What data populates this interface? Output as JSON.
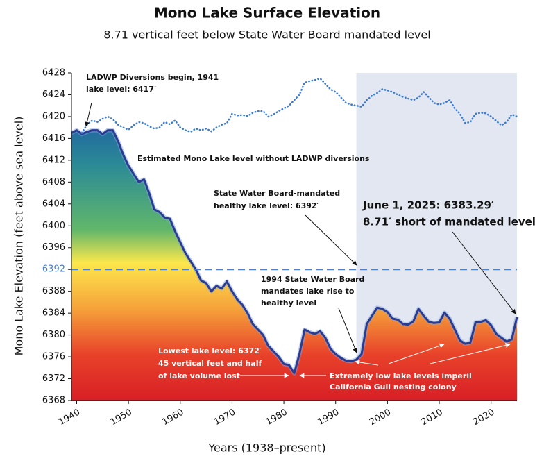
{
  "chart_data": {
    "type": "area",
    "title": "Mono Lake Surface Elevation",
    "subtitle": "8.71 vertical feet below State Water Board mandated level",
    "x_label": "Years (1938–present)",
    "y_label": "Mono Lake Elevation  (feet above sea level)",
    "x": [
      1939,
      1940,
      1941,
      1942,
      1943,
      1944,
      1945,
      1946,
      1947,
      1948,
      1949,
      1950,
      1951,
      1952,
      1953,
      1954,
      1955,
      1956,
      1957,
      1958,
      1959,
      1960,
      1961,
      1962,
      1963,
      1964,
      1965,
      1966,
      1967,
      1968,
      1969,
      1970,
      1971,
      1972,
      1973,
      1974,
      1975,
      1976,
      1977,
      1978,
      1979,
      1980,
      1981,
      1982,
      1983,
      1984,
      1985,
      1986,
      1987,
      1988,
      1989,
      1990,
      1991,
      1992,
      1993,
      1994,
      1995,
      1996,
      1997,
      1998,
      1999,
      2000,
      2001,
      2002,
      2003,
      2004,
      2005,
      2006,
      2007,
      2008,
      2009,
      2010,
      2011,
      2012,
      2013,
      2014,
      2015,
      2016,
      2017,
      2018,
      2019,
      2020,
      2021,
      2022,
      2023,
      2024,
      2025
    ],
    "series": [
      {
        "name": "Actual lake level",
        "color": "#2b3b8f",
        "style": "area",
        "values": [
          6417,
          6417.5,
          6416.8,
          6417.2,
          6417.5,
          6417.5,
          6416.8,
          6417.5,
          6417.5,
          6415.5,
          6413,
          6411,
          6409.5,
          6408,
          6408.5,
          6406,
          6403,
          6402.5,
          6401.5,
          6401.3,
          6399,
          6397,
          6395,
          6393.5,
          6392,
          6390,
          6389.5,
          6388,
          6389,
          6388.5,
          6389.8,
          6388,
          6386.5,
          6385.5,
          6384,
          6382,
          6381,
          6380,
          6378,
          6377,
          6376,
          6374.7,
          6374.5,
          6373,
          6376.5,
          6381,
          6380.5,
          6380.2,
          6380.7,
          6379.5,
          6377.5,
          6376.5,
          6375.8,
          6375.3,
          6375.2,
          6375.5,
          6376.5,
          6382,
          6383.5,
          6385,
          6384.8,
          6384.2,
          6383,
          6382.8,
          6382,
          6381.9,
          6382.5,
          6384.8,
          6383.5,
          6382.4,
          6382.2,
          6382.3,
          6384.1,
          6383,
          6381,
          6379,
          6378.4,
          6378.6,
          6382.3,
          6382.4,
          6382.7,
          6381.8,
          6380.2,
          6379.5,
          6378.8,
          6379.2,
          6383.29
        ]
      },
      {
        "name": "Estimated Mono Lake level without LADWP diversions",
        "color": "#3b7bd0",
        "style": "dotted",
        "values": [
          null,
          null,
          6417,
          6418.5,
          6419.3,
          6419,
          6419.6,
          6420,
          6419.5,
          6418.5,
          6418,
          6417.6,
          6418.4,
          6419,
          6418.8,
          6418.2,
          6417.8,
          6418,
          6419,
          6418.6,
          6419.3,
          6418,
          6417.5,
          6417.2,
          6417.8,
          6417.5,
          6417.8,
          6417.3,
          6418,
          6418.5,
          6418.8,
          6420.5,
          6420.2,
          6420.3,
          6420.1,
          6420.7,
          6421,
          6421,
          6420,
          6420.4,
          6421,
          6421.5,
          6422,
          6423,
          6424,
          6426.2,
          6426.5,
          6426.7,
          6427,
          6426,
          6425,
          6424.5,
          6423.5,
          6422.5,
          6422.2,
          6422,
          6421.8,
          6423,
          6423.8,
          6424.3,
          6425,
          6424.8,
          6424.5,
          6424,
          6423.6,
          6423.3,
          6423,
          6423.5,
          6424.5,
          6423.5,
          6422.5,
          6422.2,
          6422.5,
          6423,
          6421.5,
          6420.5,
          6418.8,
          6419,
          6420.5,
          6420.7,
          6420.6,
          6420,
          6419.2,
          6418.4,
          6419,
          6420.4,
          6420
        ]
      }
    ],
    "reference_line": {
      "value": 6392,
      "color": "#4a7fd0"
    },
    "shaded_region": {
      "from": 1994,
      "color": "#e2e7f2"
    },
    "xlim": [
      1939,
      2025
    ],
    "ylim": [
      6368,
      6428
    ],
    "xticks": [
      1940,
      1950,
      1960,
      1970,
      1980,
      1990,
      2000,
      2010,
      2020
    ],
    "yticks": [
      6368,
      6372,
      6376,
      6380,
      6384,
      6388,
      6392,
      6396,
      6400,
      6404,
      6408,
      6412,
      6416,
      6420,
      6424,
      6428
    ],
    "annotations": [
      {
        "lines": [
          "LADWP Diversions begin, 1941",
          "lake level: 6417′"
        ]
      },
      {
        "lines": [
          "Estimated Mono Lake level without LADWP diversions"
        ]
      },
      {
        "lines": [
          "State Water Board-mandated",
          "healthy lake level: 6392′"
        ]
      },
      {
        "lines": [
          "June 1, 2025: 6383.29′",
          "8.71′ short of mandated level"
        ]
      },
      {
        "lines": [
          "1994 State Water Board",
          "mandates lake rise to",
          "healthy level"
        ]
      },
      {
        "lines": [
          "Lowest lake level: 6372′",
          "45 vertical feet and half",
          "of lake volume lost"
        ]
      },
      {
        "lines": [
          "Extremely low lake levels imperil",
          "California Gull nesting colony"
        ]
      }
    ]
  }
}
